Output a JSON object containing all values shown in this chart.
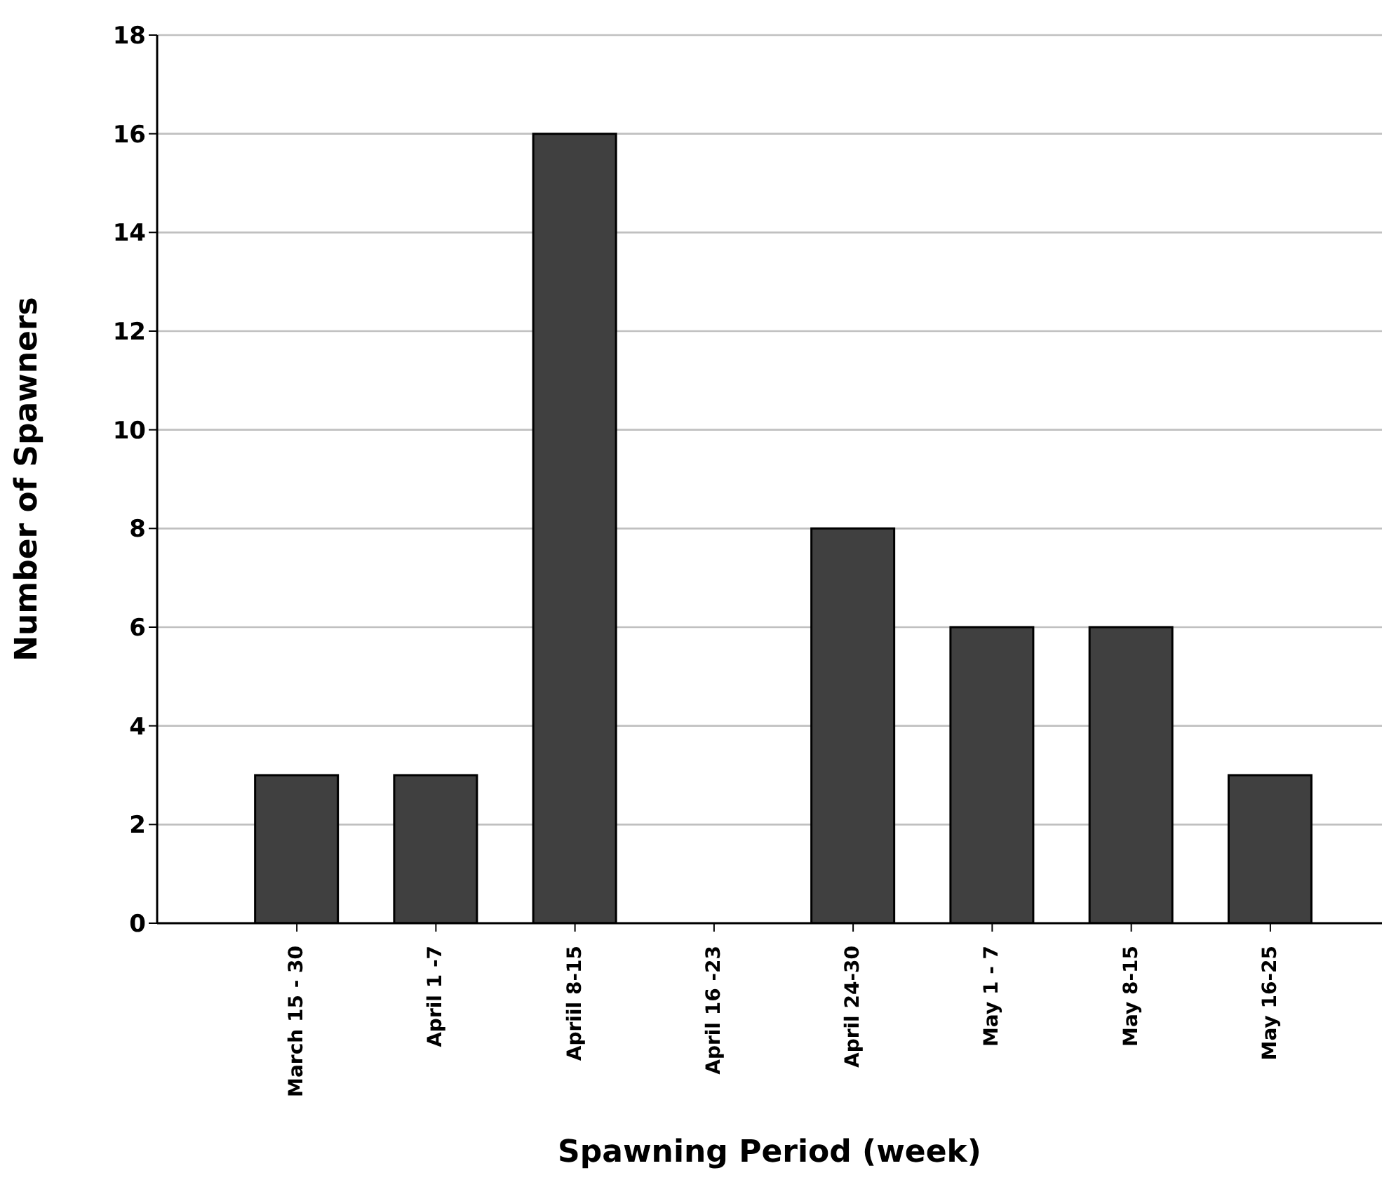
{
  "chart_data": {
    "type": "bar",
    "xlabel": "Spawning Period (week)",
    "ylabel": "Number of Spawners",
    "categories": [
      "March 15 - 30",
      "April 1 -7",
      "Apriil 8-15",
      "April 16 -23",
      "April 24-30",
      "May 1 - 7",
      "May 8-15",
      "May 16-25"
    ],
    "values": [
      3,
      3,
      16,
      0,
      8,
      6,
      6,
      3
    ],
    "color": "#404040",
    "ylim": [
      0,
      18
    ],
    "yticks": [
      0,
      2,
      4,
      6,
      8,
      10,
      12,
      14,
      16,
      18
    ],
    "grid": "y"
  }
}
